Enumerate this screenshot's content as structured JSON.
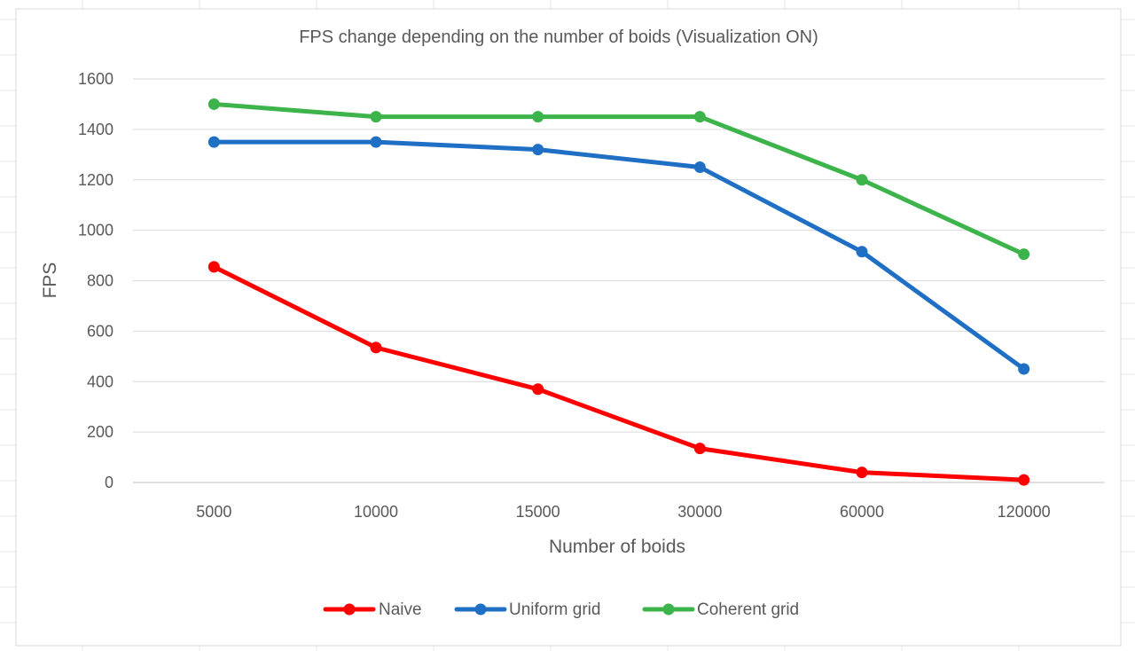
{
  "chart_data": {
    "type": "line",
    "title": "FPS change depending on the number of boids (Visualization ON)",
    "xlabel": "Number of boids",
    "ylabel": "FPS",
    "categories": [
      "5000",
      "10000",
      "15000",
      "30000",
      "60000",
      "120000"
    ],
    "ylim": [
      0,
      1600
    ],
    "yticks": [
      0,
      200,
      400,
      600,
      800,
      1000,
      1200,
      1400,
      1600
    ],
    "grid": true,
    "legend_position": "bottom",
    "series": [
      {
        "name": "Naive",
        "color": "#ff0000",
        "values": [
          855,
          535,
          370,
          135,
          40,
          10
        ]
      },
      {
        "name": "Uniform grid",
        "color": "#1f6fc5",
        "values": [
          1350,
          1350,
          1320,
          1250,
          915,
          450
        ]
      },
      {
        "name": "Coherent grid",
        "color": "#3cb44b",
        "values": [
          1500,
          1450,
          1450,
          1450,
          1200,
          905
        ]
      }
    ]
  }
}
